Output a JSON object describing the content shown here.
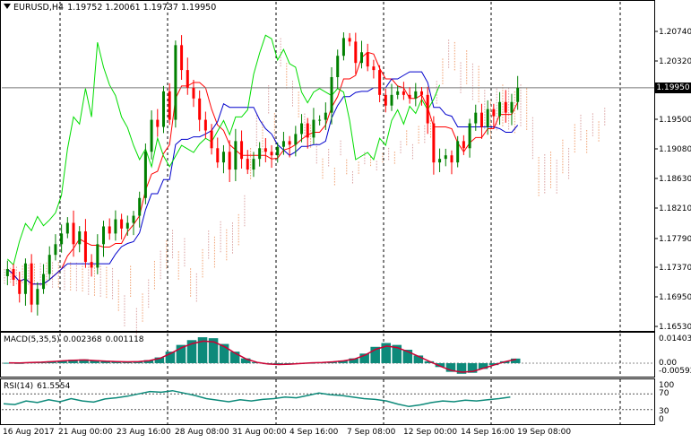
{
  "colors": {
    "background": "#ffffff",
    "bull": "#008000",
    "bear": "#ff0000",
    "tenkan": "#ff0000",
    "kijun": "#0000cc",
    "chikou": "#00dd00",
    "cloud_a": "#f0a070",
    "cloud_b": "#d9a0a0",
    "macd_hist": "#0d8a7a",
    "macd_signal": "#cc0033",
    "rsi": "#0d8a7a",
    "grid": "#000000"
  },
  "main": {
    "symbol": "EURUSD,H4",
    "open": "1.19752",
    "high": "1.20061",
    "low": "1.19737",
    "close": "1.19950",
    "current_price": "1.19950"
  },
  "macd": {
    "label": "MACD(5,35,5)",
    "value1": "0.002368",
    "value2": "0.001118",
    "axis_ticks": [
      "0.014032",
      "0.00",
      "-0.005922"
    ]
  },
  "rsi": {
    "label": "RSI(14)",
    "value": "61.5554",
    "axis_ticks": [
      "100",
      "70",
      "30",
      "0"
    ]
  },
  "x_labels": [
    "16 Aug 2017",
    "21 Aug 00:00",
    "23 Aug 16:00",
    "28 Aug 08:00",
    "31 Aug 00:00",
    "4 Sep 16:00",
    "7 Sep 08:00",
    "12 Sep 00:00",
    "14 Sep 16:00",
    "19 Sep 08:00"
  ],
  "chart_data": {
    "type": "candlestick",
    "instrument": "EURUSD",
    "timeframe": "H4",
    "y_ticks": [
      "1.20740",
      "1.20320",
      "1.19500",
      "1.19080",
      "1.18630",
      "1.18210",
      "1.17790",
      "1.17370",
      "1.16950",
      "1.16530"
    ],
    "ylim": [
      1.1653,
      1.2116
    ],
    "close_path": [
      1.174,
      1.1725,
      1.1705,
      1.1748,
      1.169,
      1.1712,
      1.1733,
      1.176,
      1.1775,
      1.179,
      1.1805,
      1.1775,
      1.1793,
      1.175,
      1.1742,
      1.1775,
      1.18,
      1.179,
      1.181,
      1.1797,
      1.1805,
      1.1815,
      1.184,
      1.1905,
      1.195,
      1.194,
      1.199,
      1.195,
      1.2055,
      1.202,
      1.1995,
      1.198,
      1.195,
      1.1935,
      1.191,
      1.189,
      1.1905,
      1.188,
      1.192,
      1.1895,
      1.188,
      1.1895,
      1.191,
      1.1905,
      1.19,
      1.1912,
      1.192,
      1.1915,
      1.193,
      1.1945,
      1.1925,
      1.195,
      1.195,
      1.196,
      1.201,
      1.204,
      1.2065,
      1.206,
      1.203,
      1.2045,
      1.2025,
      1.202,
      1.1985,
      1.197,
      1.1985,
      1.199,
      1.1985,
      1.198,
      1.199,
      1.1985,
      1.1945,
      1.189,
      1.1895,
      1.19,
      1.189,
      1.192,
      1.191,
      1.1945,
      1.196,
      1.194,
      1.1965,
      1.1955,
      1.1975,
      1.196,
      1.1975,
      1.1995
    ],
    "macd_values": [
      0.0002,
      0.0001,
      0.0004,
      0.0006,
      0.001,
      0.0014,
      0.0018,
      0.002,
      0.0016,
      0.0012,
      0.001,
      0.0008,
      0.001,
      0.0016,
      0.003,
      0.006,
      0.0095,
      0.012,
      0.0135,
      0.013,
      0.01,
      0.006,
      0.0025,
      0.0005,
      -0.0005,
      -0.0008,
      -0.0006,
      -0.0002,
      0.0002,
      0.0004,
      0.0008,
      0.0014,
      0.0025,
      0.005,
      0.0085,
      0.0105,
      0.0095,
      0.007,
      0.004,
      0.001,
      -0.002,
      -0.0045,
      -0.0055,
      -0.005,
      -0.003,
      -0.001,
      0.001,
      0.0024
    ],
    "rsi_values": [
      45,
      43,
      52,
      48,
      55,
      50,
      58,
      52,
      49,
      57,
      60,
      64,
      70,
      76,
      74,
      78,
      72,
      66,
      58,
      54,
      50,
      55,
      52,
      56,
      58,
      62,
      60,
      66,
      72,
      68,
      66,
      62,
      58,
      56,
      52,
      44,
      38,
      42,
      48,
      52,
      50,
      54,
      52,
      55,
      58,
      62
    ]
  }
}
